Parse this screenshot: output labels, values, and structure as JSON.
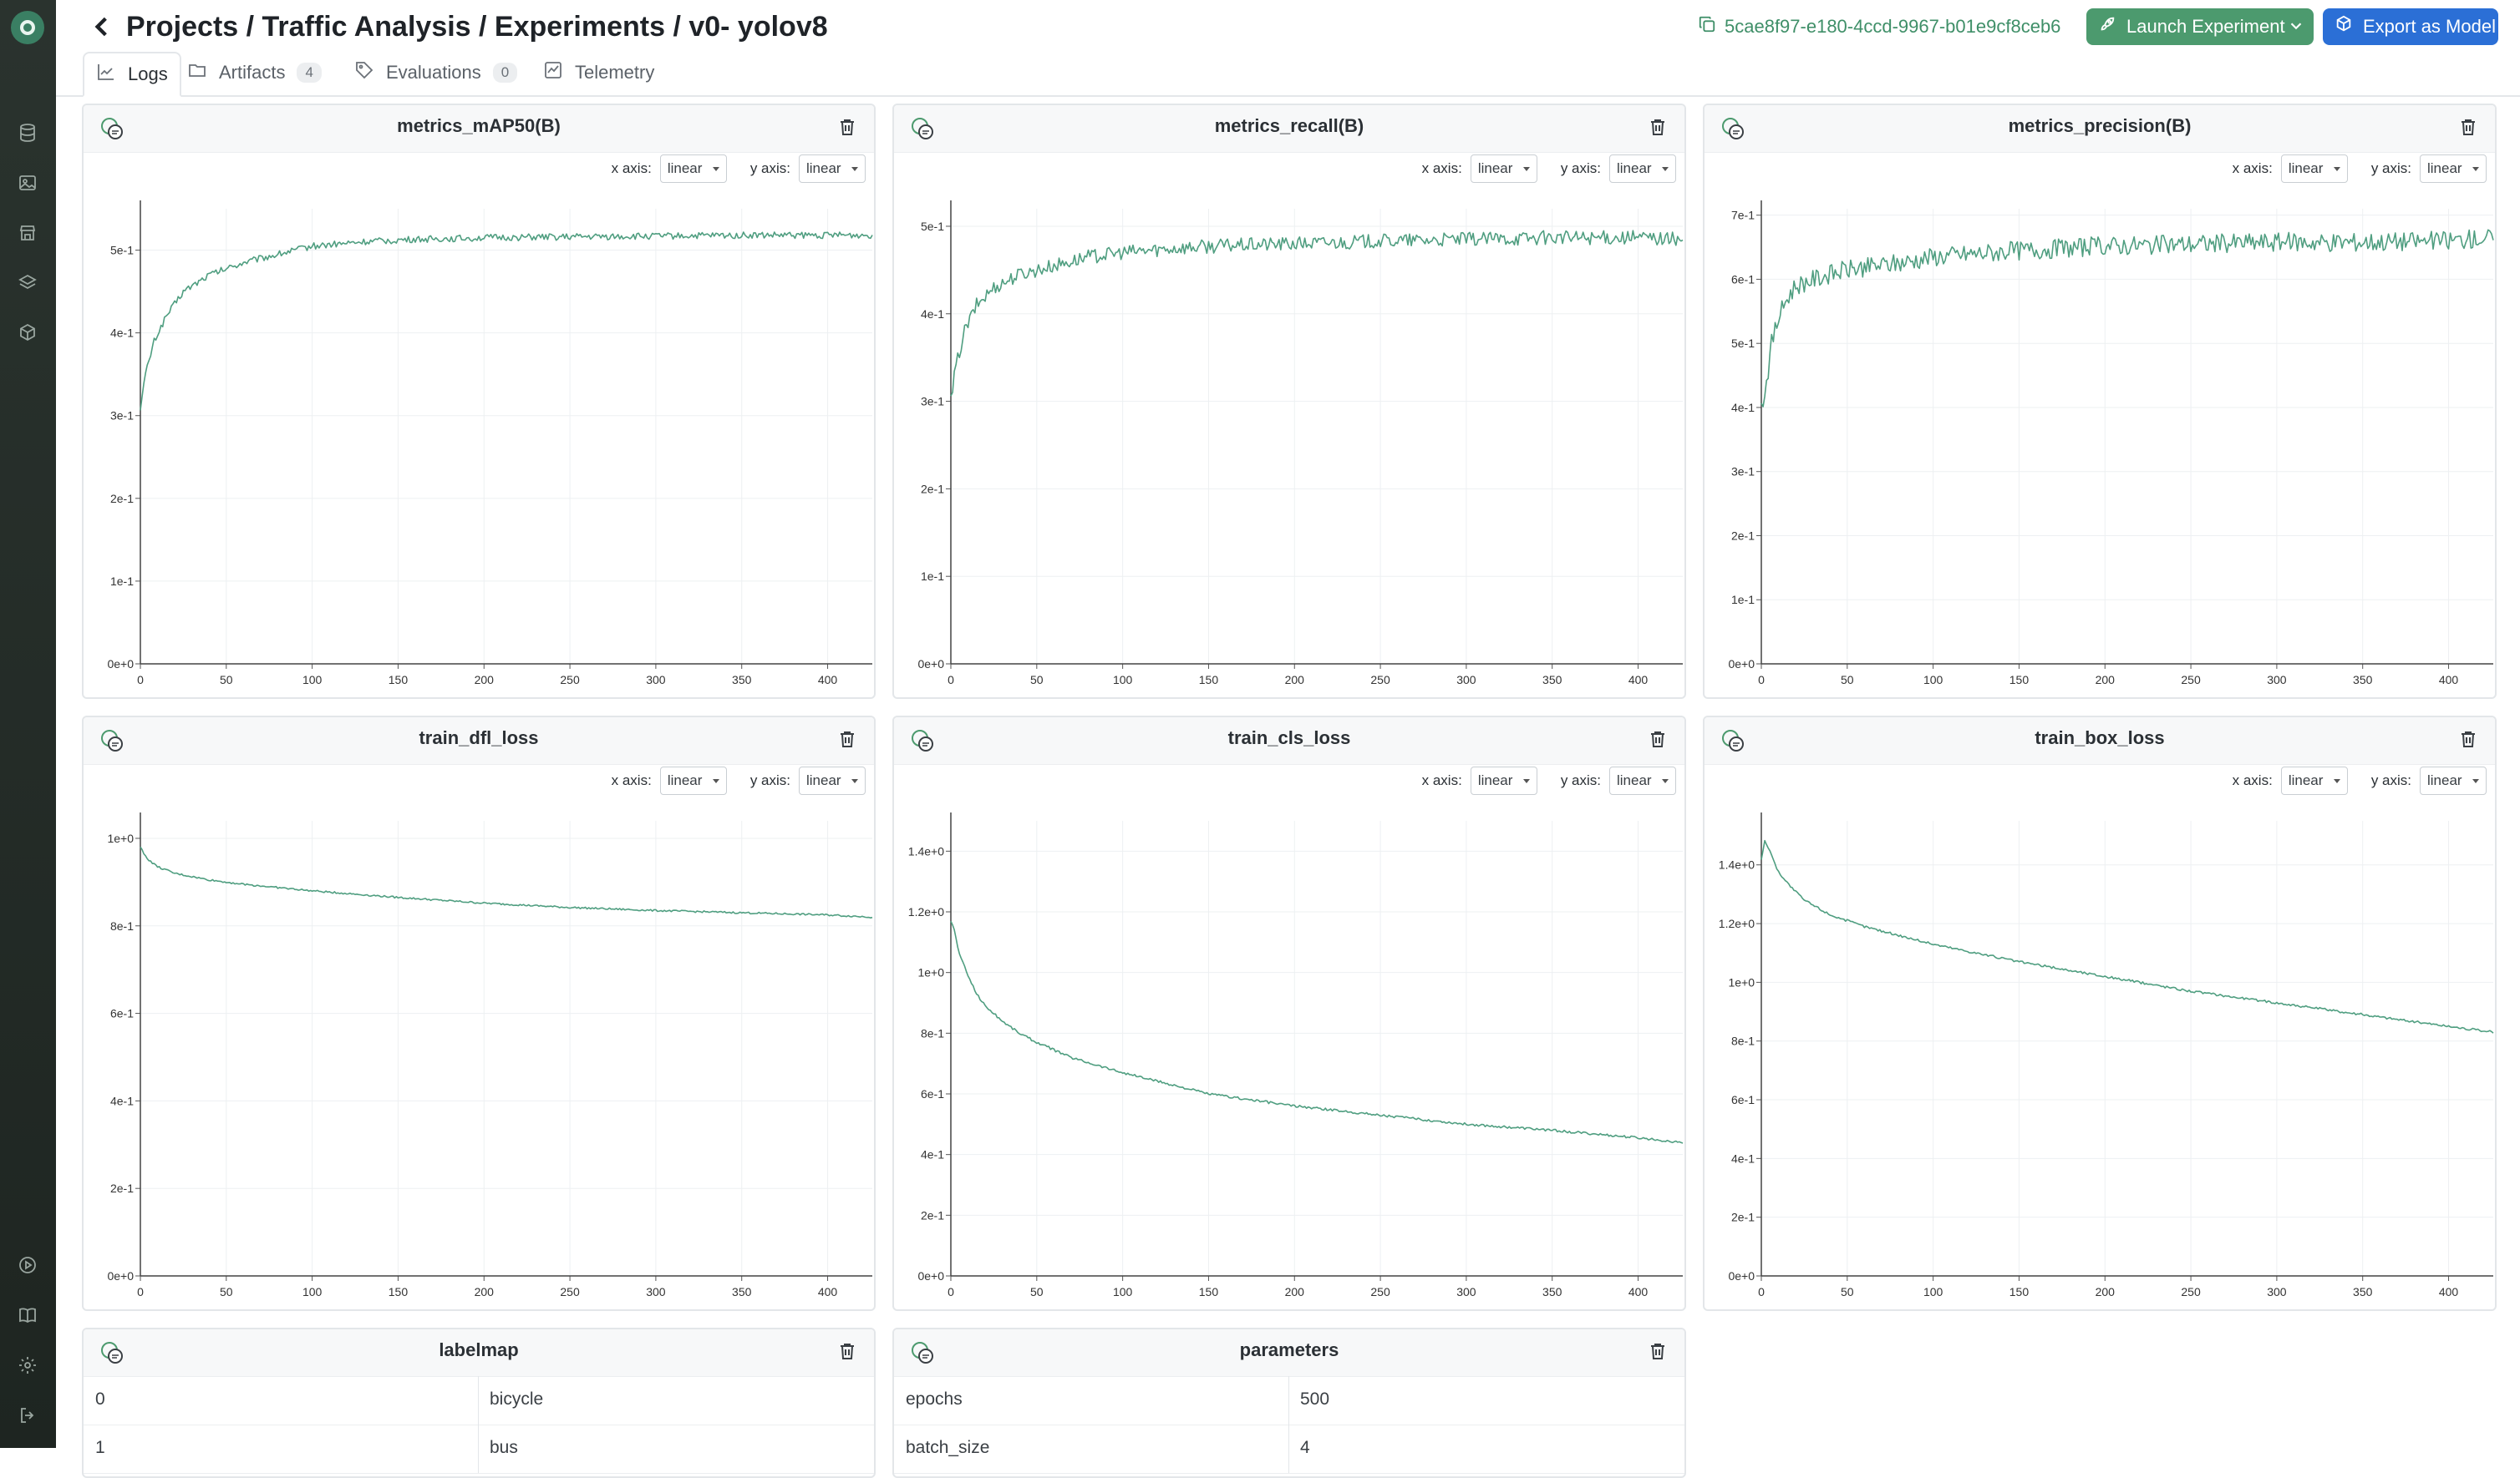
{
  "header": {
    "breadcrumb": "Projects / Traffic Analysis / Experiments / v0- yolov8",
    "run_id": "5cae8f97-e180-4ccd-9967-b01e9cf8ceb6",
    "launch_label": "Launch Experiment",
    "export_label": "Export as Model"
  },
  "tabs": [
    {
      "label": "Logs",
      "icon": "chart-line-icon"
    },
    {
      "label": "Artifacts",
      "count": "4",
      "icon": "folder-icon"
    },
    {
      "label": "Evaluations",
      "count": "0",
      "icon": "tag-icon"
    },
    {
      "label": "Telemetry",
      "icon": "telemetry-icon"
    }
  ],
  "axis_controls": {
    "x_label": "x axis:",
    "y_label": "y axis:",
    "x_value": "linear",
    "y_value": "linear"
  },
  "colors": {
    "accent": "#4c9a6e",
    "line": "#4f9e80",
    "primary": "#2b6fd6"
  },
  "chart_data": [
    {
      "type": "line",
      "title": "metrics_mAP50(B)",
      "xlim": [
        0,
        420
      ],
      "ylim": [
        0,
        0.55
      ],
      "x_ticks": [
        0,
        50,
        100,
        150,
        200,
        250,
        300,
        350,
        400
      ],
      "y_ticks": [
        0,
        0.1,
        0.2,
        0.3,
        0.4,
        0.5
      ],
      "y_tick_labels": [
        "0e+0",
        "1e-1",
        "2e-1",
        "3e-1",
        "4e-1",
        "5e-1"
      ],
      "series": [
        {
          "x": [
            0,
            3,
            8,
            15,
            25,
            40,
            60,
            80,
            100,
            130,
            160,
            200,
            250,
            300,
            350,
            400,
            426
          ],
          "y": [
            0.31,
            0.35,
            0.39,
            0.42,
            0.45,
            0.47,
            0.485,
            0.495,
            0.505,
            0.51,
            0.513,
            0.515,
            0.516,
            0.517,
            0.518,
            0.518,
            0.518
          ],
          "noise": 0.004
        }
      ]
    },
    {
      "type": "line",
      "title": "metrics_recall(B)",
      "xlim": [
        0,
        420
      ],
      "ylim": [
        0,
        0.52
      ],
      "x_ticks": [
        0,
        50,
        100,
        150,
        200,
        250,
        300,
        350,
        400
      ],
      "y_ticks": [
        0,
        0.1,
        0.2,
        0.3,
        0.4,
        0.5
      ],
      "y_tick_labels": [
        "0e+0",
        "1e-1",
        "2e-1",
        "3e-1",
        "4e-1",
        "5e-1"
      ],
      "series": [
        {
          "x": [
            0,
            3,
            8,
            15,
            25,
            40,
            60,
            80,
            100,
            130,
            160,
            200,
            250,
            300,
            350,
            400,
            426
          ],
          "y": [
            0.3,
            0.34,
            0.38,
            0.41,
            0.43,
            0.445,
            0.455,
            0.465,
            0.47,
            0.475,
            0.478,
            0.48,
            0.483,
            0.485,
            0.487,
            0.487,
            0.485
          ],
          "noise": 0.008
        }
      ]
    },
    {
      "type": "line",
      "title": "metrics_precision(B)",
      "xlim": [
        0,
        420
      ],
      "ylim": [
        0,
        0.71
      ],
      "x_ticks": [
        0,
        50,
        100,
        150,
        200,
        250,
        300,
        350,
        400
      ],
      "y_ticks": [
        0,
        0.1,
        0.2,
        0.3,
        0.4,
        0.5,
        0.6,
        0.7
      ],
      "y_tick_labels": [
        "0e+0",
        "1e-1",
        "2e-1",
        "3e-1",
        "4e-1",
        "5e-1",
        "6e-1",
        "7e-1"
      ],
      "series": [
        {
          "x": [
            0,
            3,
            6,
            10,
            15,
            20,
            30,
            50,
            80,
            100,
            150,
            200,
            250,
            300,
            350,
            400,
            426
          ],
          "y": [
            0.4,
            0.44,
            0.5,
            0.54,
            0.57,
            0.59,
            0.6,
            0.615,
            0.625,
            0.635,
            0.645,
            0.652,
            0.655,
            0.658,
            0.658,
            0.66,
            0.665
          ],
          "noise": 0.015
        }
      ]
    },
    {
      "type": "line",
      "title": "train_dfl_loss",
      "xlim": [
        0,
        420
      ],
      "ylim": [
        0,
        1.04
      ],
      "x_ticks": [
        0,
        50,
        100,
        150,
        200,
        250,
        300,
        350,
        400
      ],
      "y_ticks": [
        0,
        0.2,
        0.4,
        0.6,
        0.8,
        1.0
      ],
      "y_tick_labels": [
        "0e+0",
        "2e-1",
        "4e-1",
        "6e-1",
        "8e-1",
        "1e+0"
      ],
      "series": [
        {
          "x": [
            0,
            2,
            5,
            10,
            20,
            40,
            60,
            100,
            150,
            200,
            250,
            300,
            350,
            400,
            426
          ],
          "y": [
            0.98,
            0.965,
            0.95,
            0.935,
            0.92,
            0.905,
            0.895,
            0.88,
            0.865,
            0.852,
            0.842,
            0.835,
            0.83,
            0.825,
            0.82
          ],
          "noise": 0.002
        }
      ]
    },
    {
      "type": "line",
      "title": "train_cls_loss",
      "xlim": [
        0,
        420
      ],
      "ylim": [
        0,
        1.5
      ],
      "x_ticks": [
        0,
        50,
        100,
        150,
        200,
        250,
        300,
        350,
        400
      ],
      "y_ticks": [
        0,
        0.2,
        0.4,
        0.6,
        0.8,
        1.0,
        1.2,
        1.4
      ],
      "y_tick_labels": [
        "0e+0",
        "2e-1",
        "4e-1",
        "6e-1",
        "8e-1",
        "1e+0",
        "1.2e+0",
        "1.4e+0"
      ],
      "series": [
        {
          "x": [
            0,
            2,
            5,
            10,
            15,
            20,
            30,
            40,
            50,
            70,
            100,
            150,
            200,
            250,
            300,
            350,
            400,
            426
          ],
          "y": [
            1.17,
            1.14,
            1.06,
            0.99,
            0.93,
            0.89,
            0.84,
            0.8,
            0.77,
            0.72,
            0.67,
            0.6,
            0.56,
            0.53,
            0.5,
            0.48,
            0.455,
            0.44
          ],
          "noise": 0.004
        }
      ]
    },
    {
      "type": "line",
      "title": "train_box_loss",
      "xlim": [
        0,
        420
      ],
      "ylim": [
        0,
        1.55
      ],
      "x_ticks": [
        0,
        50,
        100,
        150,
        200,
        250,
        300,
        350,
        400
      ],
      "y_ticks": [
        0,
        0.2,
        0.4,
        0.6,
        0.8,
        1.0,
        1.2,
        1.4
      ],
      "y_tick_labels": [
        "0e+0",
        "2e-1",
        "4e-1",
        "6e-1",
        "8e-1",
        "1e+0",
        "1.2e+0",
        "1.4e+0"
      ],
      "series": [
        {
          "x": [
            0,
            2,
            5,
            8,
            12,
            18,
            25,
            40,
            60,
            100,
            150,
            200,
            250,
            300,
            350,
            400,
            426
          ],
          "y": [
            1.42,
            1.48,
            1.45,
            1.4,
            1.36,
            1.32,
            1.28,
            1.23,
            1.19,
            1.13,
            1.07,
            1.02,
            0.97,
            0.93,
            0.89,
            0.85,
            0.83
          ],
          "noise": 0.004
        }
      ]
    }
  ],
  "labelmap": {
    "title": "labelmap",
    "rows": [
      [
        "0",
        "bicycle"
      ],
      [
        "1",
        "bus"
      ]
    ]
  },
  "parameters": {
    "title": "parameters",
    "rows": [
      [
        "epochs",
        "500"
      ],
      [
        "batch_size",
        "4"
      ]
    ]
  }
}
